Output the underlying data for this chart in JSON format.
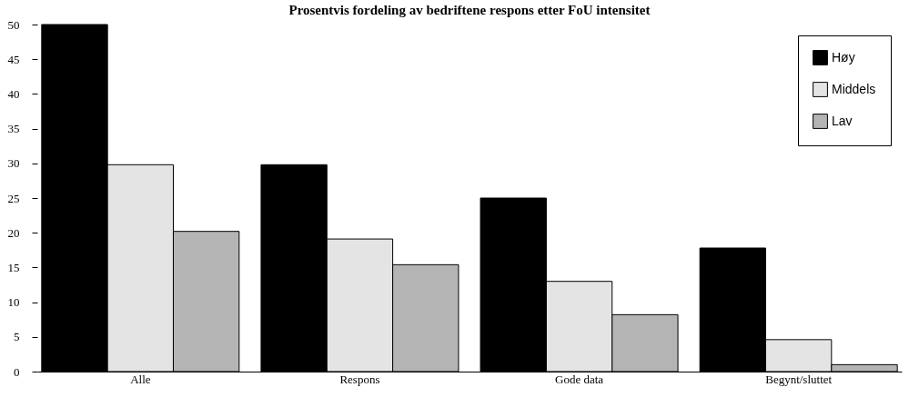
{
  "chart_data": {
    "type": "bar",
    "title": "Prosentvis fordeling av bedriftene respons etter FoU intensitet",
    "categories": [
      "Alle",
      "Respons",
      "Gode data",
      "Begynt/sluttet"
    ],
    "series": [
      {
        "name": "Høy",
        "color": "#000000",
        "values": [
          50,
          29.8,
          25,
          17.8
        ]
      },
      {
        "name": "Middels",
        "color": "#e4e4e4",
        "values": [
          29.8,
          19.1,
          13,
          4.6
        ]
      },
      {
        "name": "Lav",
        "color": "#b4b4b4",
        "values": [
          20.2,
          15.4,
          8.2,
          1
        ]
      }
    ],
    "ylim": [
      0,
      50
    ],
    "yticks": [
      0,
      5,
      10,
      15,
      20,
      25,
      30,
      35,
      40,
      45,
      50
    ],
    "grid": false,
    "legend": "top right"
  }
}
